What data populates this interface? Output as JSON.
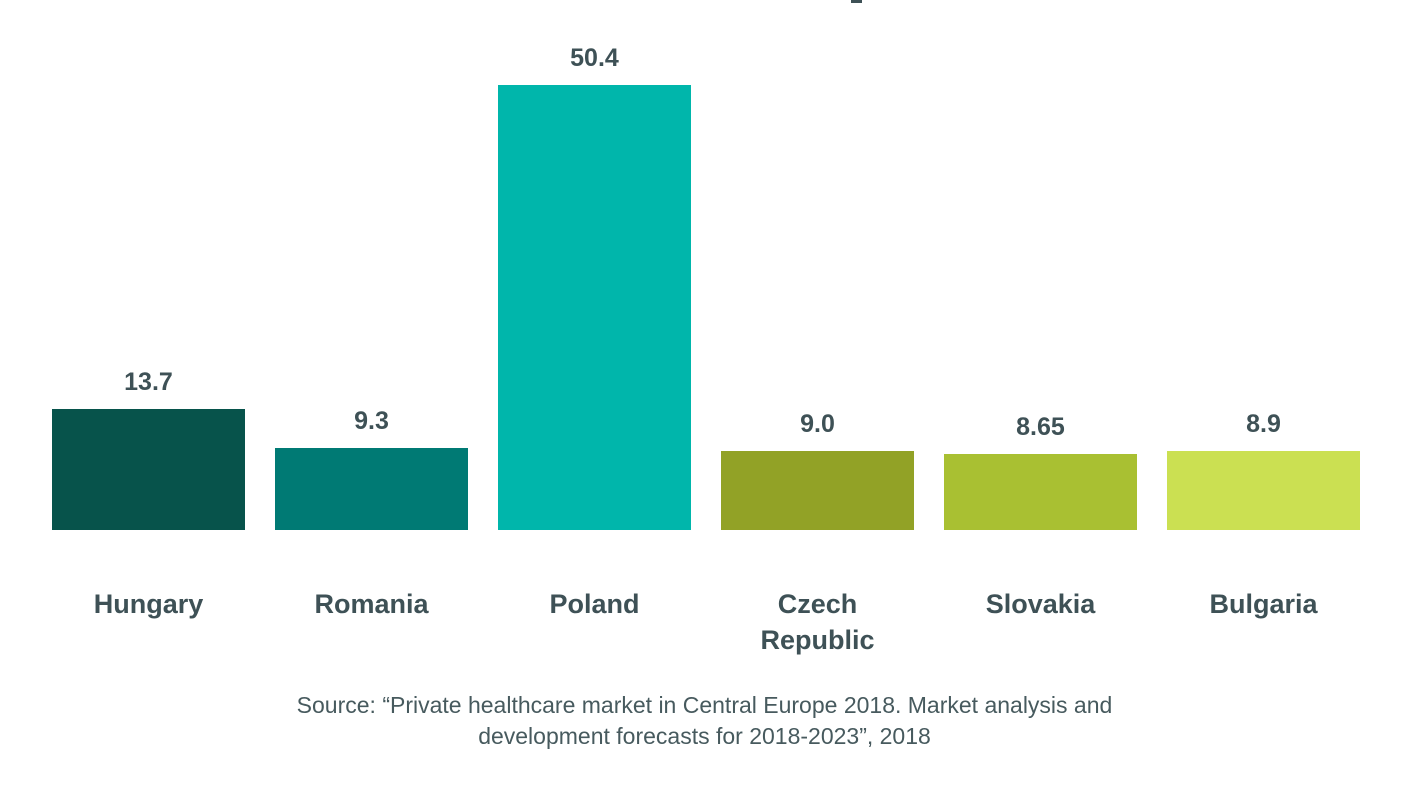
{
  "page": {
    "background": "#ffffff"
  },
  "chart_data": {
    "type": "bar",
    "categories": [
      "Hungary",
      "Romania",
      "Poland",
      "Czech Republic",
      "Slovakia",
      "Bulgaria"
    ],
    "display_labels": [
      "Hungary",
      "Romania",
      "Poland",
      "Czech\nRepublic",
      "Slovakia",
      "Bulgaria"
    ],
    "values": [
      13.7,
      9.3,
      50.4,
      9.0,
      8.65,
      8.9
    ],
    "value_labels": [
      "13.7",
      "9.3",
      "50.4",
      "9.0",
      "8.65",
      "8.9"
    ],
    "bar_colors": [
      "#07534B",
      "#007A74",
      "#00B6AB",
      "#92A226",
      "#A9C032",
      "#CBE052"
    ],
    "label_color": "#3E5156",
    "title": "",
    "xlabel": "",
    "ylabel": "",
    "ylim": [
      0,
      50.4
    ],
    "grid": false,
    "legend": false
  },
  "source": {
    "line1": "Source: “Private healthcare market in Central Europe 2018. Market analysis and",
    "line2": "development forecasts for 2018-2023”, 2018"
  }
}
